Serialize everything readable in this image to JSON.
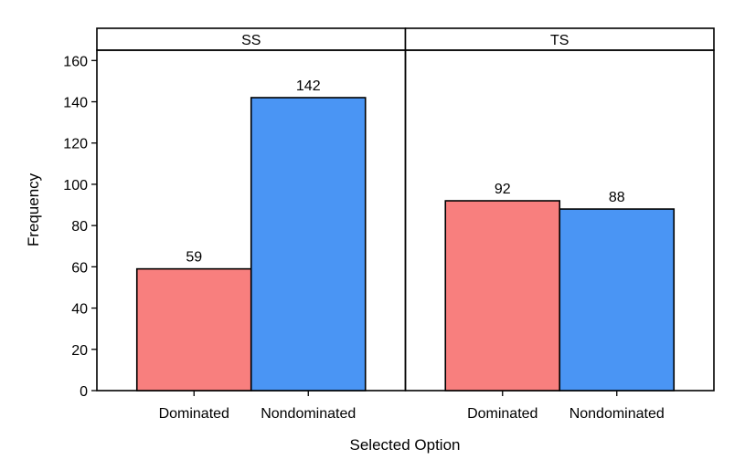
{
  "chart_data": {
    "type": "bar",
    "xlabel": "Selected Option",
    "ylabel": "Frequency",
    "ylim": [
      0,
      165
    ],
    "yticks": [
      0,
      20,
      40,
      60,
      80,
      100,
      120,
      140,
      160
    ],
    "categories": [
      "Dominated",
      "Nondominated"
    ],
    "colors": {
      "Dominated": "#f87f7e",
      "Nondominated": "#4a95f4"
    },
    "panels": [
      {
        "label": "SS",
        "values": [
          59,
          142
        ]
      },
      {
        "label": "TS",
        "values": [
          92,
          88
        ]
      }
    ],
    "grid": false,
    "legend": "none"
  }
}
